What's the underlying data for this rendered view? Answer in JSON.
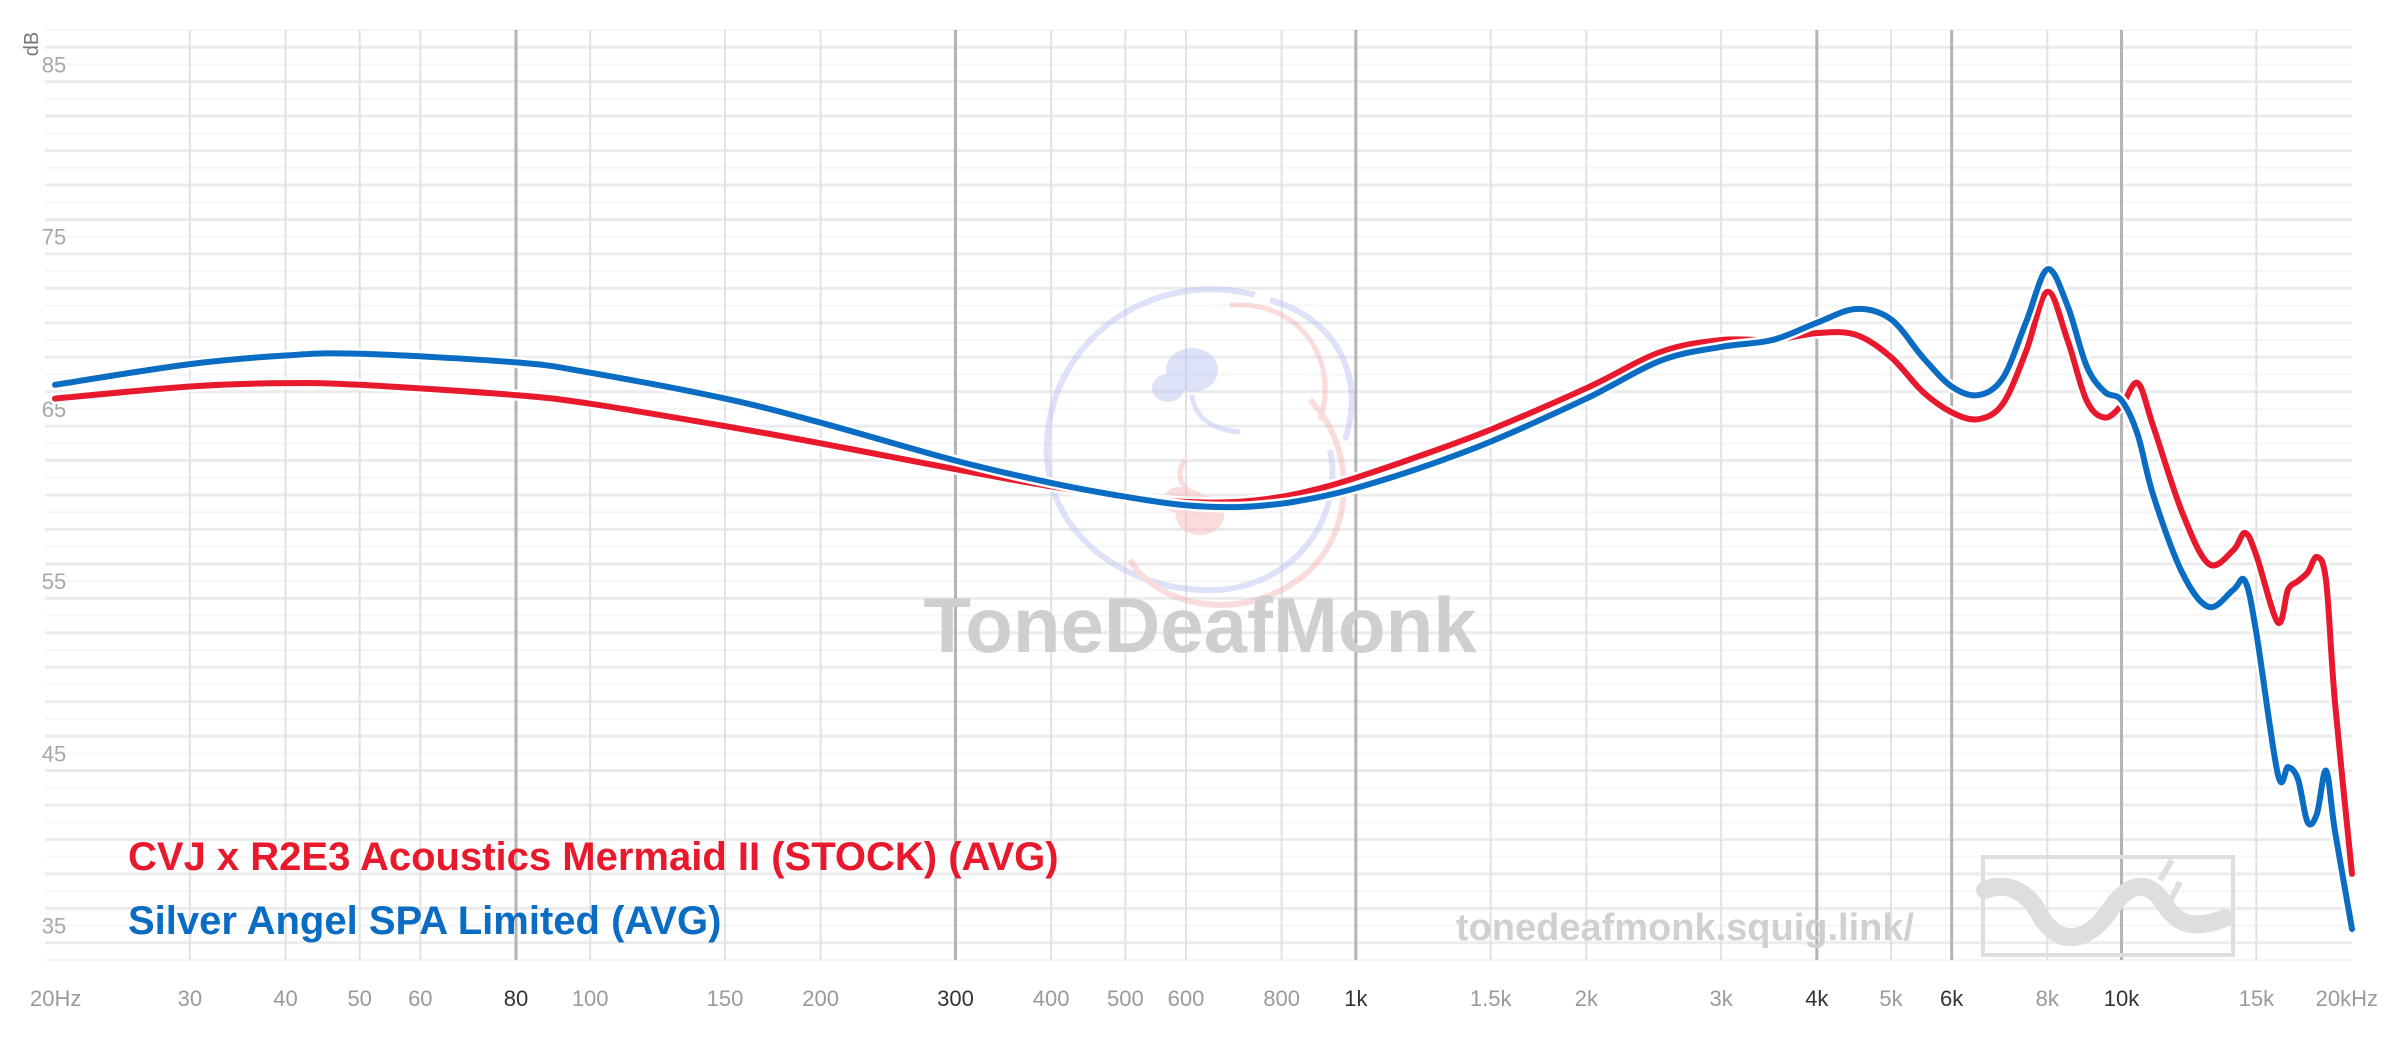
{
  "chart_data": {
    "type": "line",
    "ylabel": "dB",
    "x_scale": "log",
    "xlim": [
      20,
      20000
    ],
    "ylim": [
      33,
      87
    ],
    "grid": true,
    "legend_position": "bottom-left",
    "x_ticks": [
      {
        "value": 20,
        "label": "20Hz",
        "major": false
      },
      {
        "value": 30,
        "label": "30",
        "major": false
      },
      {
        "value": 40,
        "label": "40",
        "major": false
      },
      {
        "value": 50,
        "label": "50",
        "major": false
      },
      {
        "value": 60,
        "label": "60",
        "major": false
      },
      {
        "value": 80,
        "label": "80",
        "major": true
      },
      {
        "value": 100,
        "label": "100",
        "major": false
      },
      {
        "value": 150,
        "label": "150",
        "major": false
      },
      {
        "value": 200,
        "label": "200",
        "major": false
      },
      {
        "value": 300,
        "label": "300",
        "major": true
      },
      {
        "value": 400,
        "label": "400",
        "major": false
      },
      {
        "value": 500,
        "label": "500",
        "major": false
      },
      {
        "value": 600,
        "label": "600",
        "major": false
      },
      {
        "value": 800,
        "label": "800",
        "major": false
      },
      {
        "value": 1000,
        "label": "1k",
        "major": true
      },
      {
        "value": 1500,
        "label": "1.5k",
        "major": false
      },
      {
        "value": 2000,
        "label": "2k",
        "major": false
      },
      {
        "value": 3000,
        "label": "3k",
        "major": false
      },
      {
        "value": 4000,
        "label": "4k",
        "major": true
      },
      {
        "value": 5000,
        "label": "5k",
        "major": false
      },
      {
        "value": 6000,
        "label": "6k",
        "major": true
      },
      {
        "value": 8000,
        "label": "8k",
        "major": false
      },
      {
        "value": 10000,
        "label": "10k",
        "major": true
      },
      {
        "value": 15000,
        "label": "15k",
        "major": false
      },
      {
        "value": 20000,
        "label": "20kHz",
        "major": false
      }
    ],
    "y_ticks": [
      {
        "value": 85,
        "label": "85"
      },
      {
        "value": 75,
        "label": "75"
      },
      {
        "value": 65,
        "label": "65"
      },
      {
        "value": 55,
        "label": "55"
      },
      {
        "value": 45,
        "label": "45"
      },
      {
        "value": 35,
        "label": "35"
      }
    ],
    "series": [
      {
        "name": "CVJ x R2E3 Acoustics Mermaid II (STOCK) (AVG)",
        "color": "#e8192c",
        "points": [
          [
            20,
            65.6
          ],
          [
            30,
            66.3
          ],
          [
            40,
            66.5
          ],
          [
            50,
            66.4
          ],
          [
            80,
            65.8
          ],
          [
            100,
            65.3
          ],
          [
            150,
            64.0
          ],
          [
            200,
            63.0
          ],
          [
            300,
            61.5
          ],
          [
            400,
            60.5
          ],
          [
            500,
            59.9
          ],
          [
            600,
            59.6
          ],
          [
            700,
            59.6
          ],
          [
            800,
            59.9
          ],
          [
            900,
            60.4
          ],
          [
            1000,
            61.0
          ],
          [
            1200,
            62.2
          ],
          [
            1500,
            63.8
          ],
          [
            2000,
            66.2
          ],
          [
            2500,
            68.3
          ],
          [
            3000,
            69.0
          ],
          [
            3500,
            69.0
          ],
          [
            4000,
            69.4
          ],
          [
            4500,
            69.3
          ],
          [
            5000,
            68.0
          ],
          [
            5500,
            66.0
          ],
          [
            6000,
            64.8
          ],
          [
            6500,
            64.4
          ],
          [
            7000,
            65.3
          ],
          [
            7500,
            68.3
          ],
          [
            8000,
            71.8
          ],
          [
            8500,
            69.0
          ],
          [
            9000,
            65.5
          ],
          [
            9500,
            64.5
          ],
          [
            10000,
            65.2
          ],
          [
            10500,
            66.5
          ],
          [
            11000,
            64.0
          ],
          [
            12000,
            59.0
          ],
          [
            13000,
            56.0
          ],
          [
            14000,
            56.8
          ],
          [
            14500,
            57.8
          ],
          [
            15000,
            56.5
          ],
          [
            16000,
            52.6
          ],
          [
            16500,
            54.5
          ],
          [
            17000,
            55.0
          ],
          [
            17500,
            55.5
          ],
          [
            18000,
            56.4
          ],
          [
            18500,
            55.0
          ],
          [
            19000,
            48.0
          ],
          [
            20000,
            38.0
          ]
        ]
      },
      {
        "name": "Silver Angel SPA Limited (AVG)",
        "color": "#0a6cc2",
        "points": [
          [
            20,
            66.4
          ],
          [
            30,
            67.6
          ],
          [
            40,
            68.1
          ],
          [
            50,
            68.2
          ],
          [
            80,
            67.7
          ],
          [
            100,
            67.1
          ],
          [
            150,
            65.6
          ],
          [
            200,
            64.2
          ],
          [
            300,
            62.0
          ],
          [
            400,
            60.7
          ],
          [
            500,
            59.9
          ],
          [
            600,
            59.4
          ],
          [
            700,
            59.3
          ],
          [
            800,
            59.5
          ],
          [
            900,
            59.9
          ],
          [
            1000,
            60.4
          ],
          [
            1200,
            61.5
          ],
          [
            1500,
            63.1
          ],
          [
            2000,
            65.6
          ],
          [
            2500,
            67.8
          ],
          [
            3000,
            68.6
          ],
          [
            3500,
            69.0
          ],
          [
            4000,
            70.0
          ],
          [
            4500,
            70.8
          ],
          [
            5000,
            70.2
          ],
          [
            5500,
            68.0
          ],
          [
            6000,
            66.3
          ],
          [
            6500,
            65.8
          ],
          [
            7000,
            66.8
          ],
          [
            7500,
            70.0
          ],
          [
            8000,
            73.1
          ],
          [
            8500,
            71.0
          ],
          [
            9000,
            67.5
          ],
          [
            9500,
            66.0
          ],
          [
            10000,
            65.5
          ],
          [
            10500,
            63.5
          ],
          [
            11000,
            60.0
          ],
          [
            12000,
            55.5
          ],
          [
            13000,
            53.5
          ],
          [
            14000,
            54.5
          ],
          [
            14500,
            55.0
          ],
          [
            15000,
            52.0
          ],
          [
            16000,
            43.8
          ],
          [
            16500,
            44.2
          ],
          [
            17000,
            43.5
          ],
          [
            17500,
            41.0
          ],
          [
            18000,
            41.5
          ],
          [
            18500,
            44.0
          ],
          [
            19000,
            40.5
          ],
          [
            20000,
            34.8
          ]
        ]
      }
    ],
    "legend": [
      {
        "label": "CVJ x R2E3 Acoustics Mermaid II (STOCK) (AVG)",
        "color": "#e8192c"
      },
      {
        "label": "Silver Angel SPA Limited (AVG)",
        "color": "#0a6cc2"
      }
    ]
  },
  "watermark": {
    "title": "ToneDeafMonk",
    "url": "tonedeafmonk.squig.link/"
  }
}
